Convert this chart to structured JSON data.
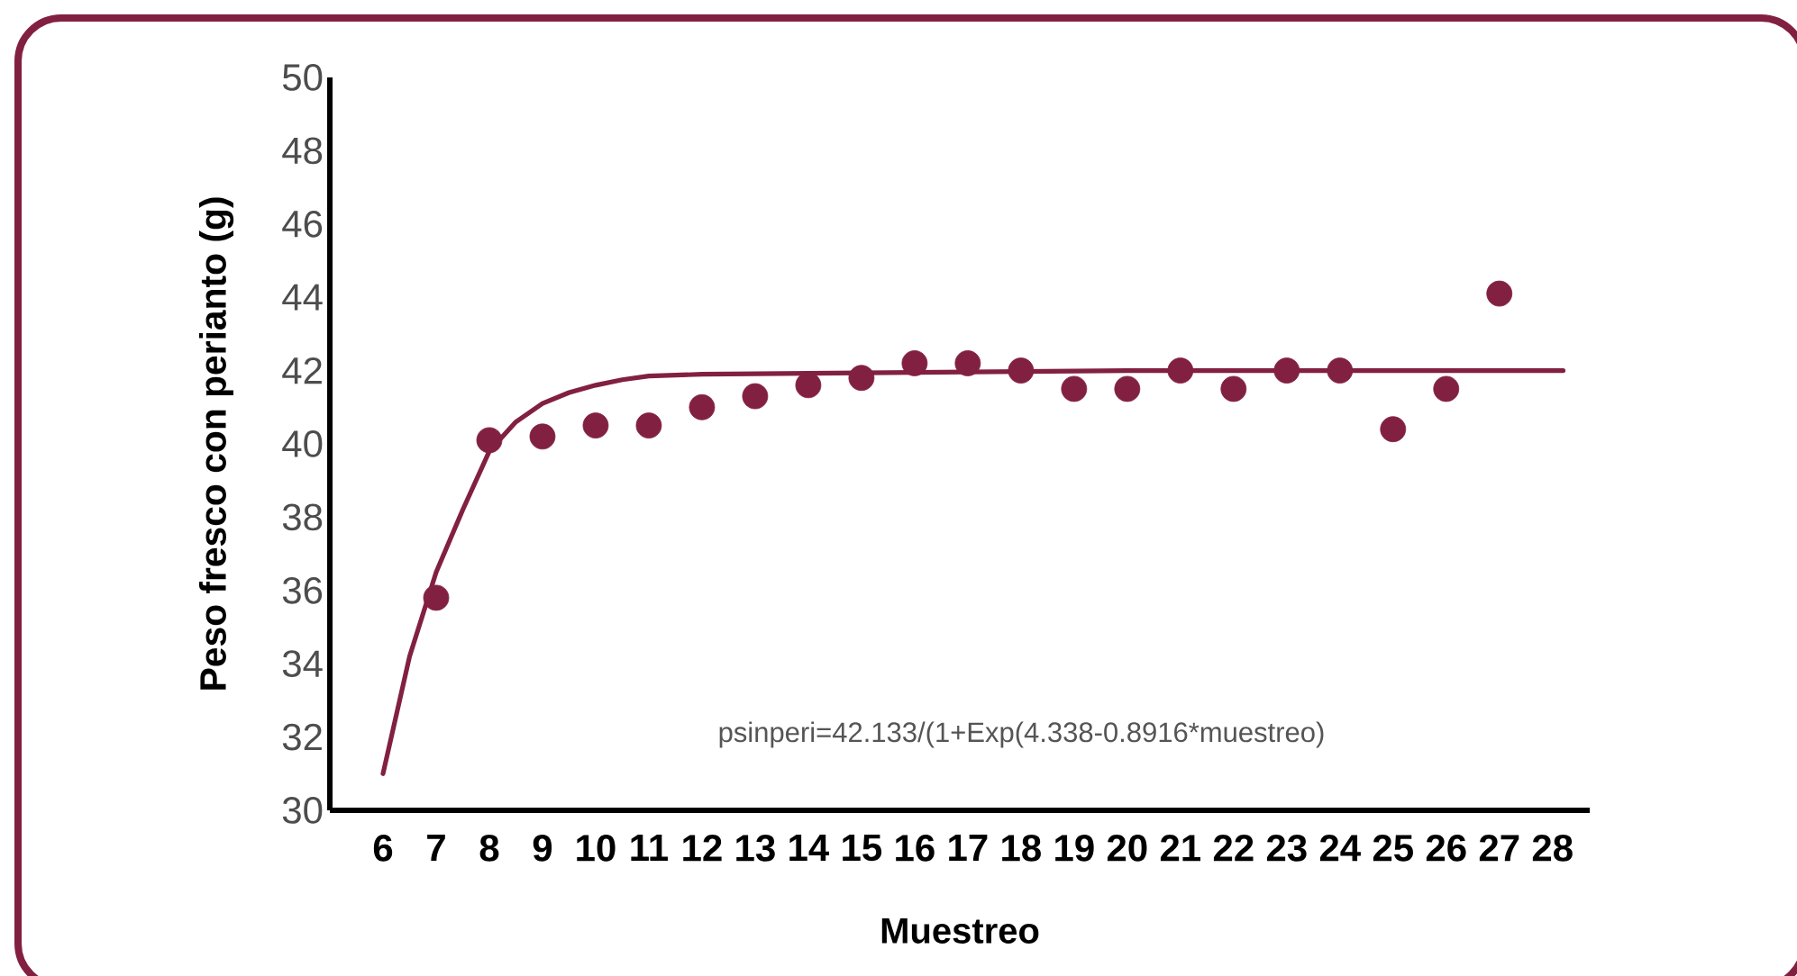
{
  "chart_data": {
    "type": "scatter",
    "xlabel": "Muestreo",
    "ylabel": "Peso fresco con perianto (g)",
    "annotations": [
      "psinperi=42.133/(1+Exp(4.338-0.8916*muestreo)"
    ],
    "xlim": [
      5,
      28.7
    ],
    "xticks": [
      6,
      7,
      8,
      9,
      10,
      11,
      12,
      13,
      14,
      15,
      16,
      17,
      18,
      19,
      20,
      21,
      22,
      23,
      24,
      25,
      26,
      27,
      28
    ],
    "ylim": [
      30,
      50
    ],
    "yticks": [
      30,
      32,
      34,
      36,
      38,
      40,
      42,
      44,
      46,
      48,
      50
    ],
    "series": [
      {
        "type": "line",
        "color": "#822042",
        "line_style": "solid",
        "marker": "none",
        "x": [
          6,
          6.5,
          7,
          7.5,
          8,
          8.5,
          9,
          9.5,
          10,
          10.5,
          11,
          12,
          16,
          20,
          28.2
        ],
        "values": [
          31.0,
          34.2,
          36.5,
          38.2,
          39.8,
          40.6,
          41.1,
          41.4,
          41.6,
          41.75,
          41.85,
          41.9,
          41.95,
          42.0,
          42.0
        ]
      },
      {
        "color": "#822042",
        "marker": "circle",
        "x": [
          7,
          8,
          9,
          10,
          11,
          12,
          13,
          14,
          15,
          16,
          17,
          18,
          19,
          20,
          21,
          22,
          23,
          24,
          25,
          26,
          27
        ],
        "values": [
          35.8,
          40.1,
          40.2,
          40.5,
          40.5,
          41.0,
          41.3,
          41.6,
          41.8,
          42.2,
          42.2,
          42.0,
          41.5,
          41.5,
          42.0,
          41.5,
          42.0,
          42.0,
          40.4,
          41.5,
          44.1
        ]
      }
    ]
  }
}
